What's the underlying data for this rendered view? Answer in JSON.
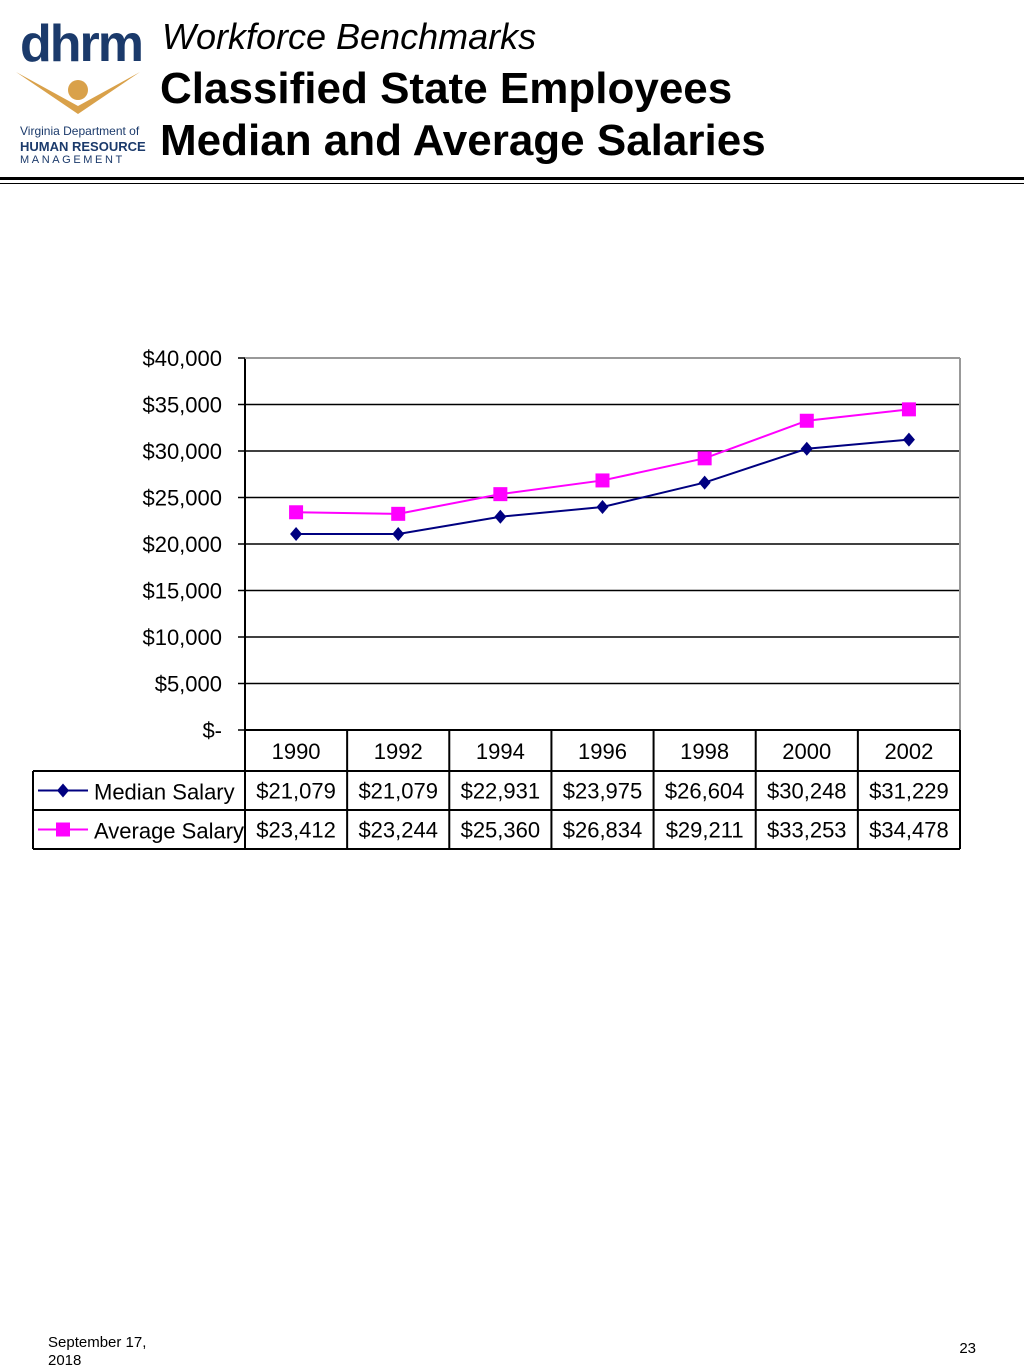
{
  "logo": {
    "word": "dhrm",
    "line1": "Virginia Department of",
    "line2": "HUMAN RESOURCE",
    "line3": "MANAGEMENT",
    "colors": {
      "navy": "#1b3a6b",
      "gold": "#d9a14a"
    }
  },
  "header": {
    "subtitle": "Workforce Benchmarks",
    "title_line1": "Classified State Employees",
    "title_line2": "Median and Average Salaries"
  },
  "chart_data": {
    "type": "line",
    "title": "",
    "xlabel": "",
    "ylabel": "",
    "categories": [
      "1990",
      "1992",
      "1994",
      "1996",
      "1998",
      "2000",
      "2002"
    ],
    "ylim": [
      0,
      40000
    ],
    "y_ticks": [
      0,
      5000,
      10000,
      15000,
      20000,
      25000,
      30000,
      35000,
      40000
    ],
    "y_tick_labels": [
      "$-",
      "$5,000",
      "$10,000",
      "$15,000",
      "$20,000",
      "$25,000",
      "$30,000",
      "$35,000",
      "$40,000"
    ],
    "grid": true,
    "legend": "data-table-left",
    "series": [
      {
        "name": "Median Salary",
        "color": "#000080",
        "marker": "diamond",
        "values": [
          21079,
          21079,
          22931,
          23975,
          26604,
          30248,
          31229
        ],
        "labels": [
          "$21,079",
          "$21,079",
          "$22,931",
          "$23,975",
          "$26,604",
          "$30,248",
          "$31,229"
        ]
      },
      {
        "name": "Average Salary",
        "color": "#ff00ff",
        "marker": "square",
        "values": [
          23412,
          23244,
          25360,
          26834,
          29211,
          33253,
          34478
        ],
        "labels": [
          "$23,412",
          "$23,244",
          "$25,360",
          "$26,834",
          "$29,211",
          "$33,253",
          "$34,478"
        ]
      }
    ]
  },
  "footer": {
    "date": "September 17, 2018",
    "page": "23"
  }
}
